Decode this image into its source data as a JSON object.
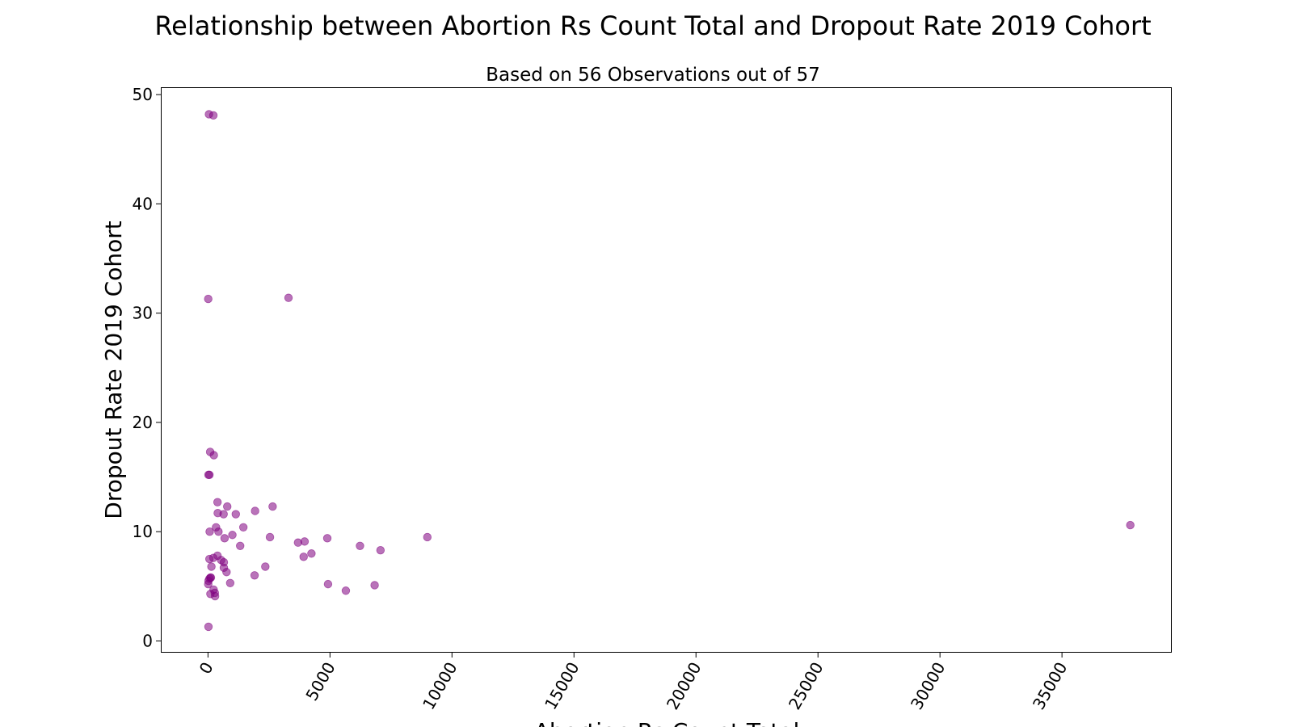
{
  "chart_data": {
    "type": "scatter",
    "title": "Relationship between Abortion Rs Count Total and Dropout Rate 2019 Cohort",
    "subtitle": "Based on 56 Observations out of 57",
    "xlabel": "Abortion Rs Count Total",
    "ylabel": "Dropout Rate 2019 Cohort",
    "xlim": [
      -1900,
      39500
    ],
    "ylim": [
      -1.0,
      50.6
    ],
    "xticks": [
      0,
      5000,
      10000,
      15000,
      20000,
      25000,
      30000,
      35000
    ],
    "yticks": [
      0,
      10,
      20,
      30,
      40,
      50
    ],
    "grid": false,
    "marker_color": "#800080",
    "marker_opacity": 0.55,
    "points": [
      [
        40,
        48.2
      ],
      [
        220,
        48.1
      ],
      [
        10,
        31.3
      ],
      [
        3300,
        31.4
      ],
      [
        90,
        17.3
      ],
      [
        240,
        17.0
      ],
      [
        20,
        15.2
      ],
      [
        60,
        15.2
      ],
      [
        390,
        12.7
      ],
      [
        790,
        12.3
      ],
      [
        2650,
        12.3
      ],
      [
        1930,
        11.9
      ],
      [
        400,
        11.7
      ],
      [
        640,
        11.6
      ],
      [
        1140,
        11.6
      ],
      [
        330,
        10.4
      ],
      [
        1450,
        10.4
      ],
      [
        430,
        10.0
      ],
      [
        70,
        10.0
      ],
      [
        1000,
        9.7
      ],
      [
        2540,
        9.5
      ],
      [
        680,
        9.4
      ],
      [
        4890,
        9.4
      ],
      [
        8990,
        9.5
      ],
      [
        3690,
        9.0
      ],
      [
        3960,
        9.1
      ],
      [
        6230,
        8.7
      ],
      [
        1320,
        8.7
      ],
      [
        7070,
        8.3
      ],
      [
        4240,
        8.0
      ],
      [
        390,
        7.8
      ],
      [
        3920,
        7.7
      ],
      [
        220,
        7.6
      ],
      [
        60,
        7.5
      ],
      [
        540,
        7.4
      ],
      [
        650,
        7.2
      ],
      [
        2350,
        6.8
      ],
      [
        140,
        6.8
      ],
      [
        650,
        6.7
      ],
      [
        760,
        6.3
      ],
      [
        1910,
        6.0
      ],
      [
        100,
        5.8
      ],
      [
        60,
        5.7
      ],
      [
        20,
        5.5
      ],
      [
        10,
        5.2
      ],
      [
        910,
        5.3
      ],
      [
        4920,
        5.2
      ],
      [
        6830,
        5.1
      ],
      [
        5650,
        4.6
      ],
      [
        230,
        4.7
      ],
      [
        280,
        4.4
      ],
      [
        100,
        4.3
      ],
      [
        290,
        4.1
      ],
      [
        20,
        1.3
      ],
      [
        37800,
        10.6
      ],
      [
        120,
        5.8
      ]
    ]
  }
}
